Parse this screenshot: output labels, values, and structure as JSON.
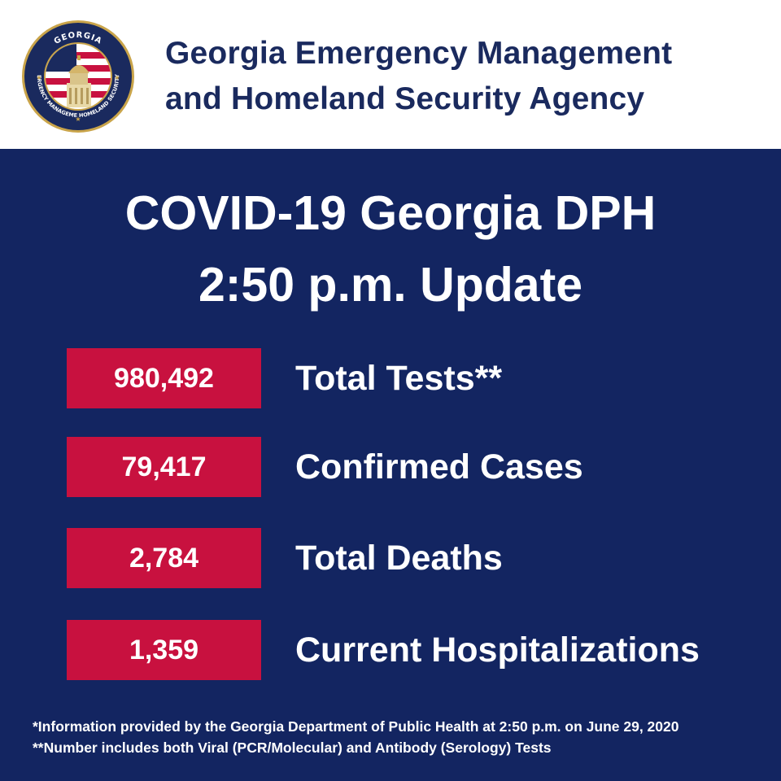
{
  "header": {
    "agency_line1": "Georgia Emergency Management",
    "agency_line2": "and Homeland Security Agency",
    "seal": {
      "top_text": "GEORGIA",
      "left_text": "EMERGENCY MANAGEMENT",
      "right_text": "HOMELAND SECURITY"
    }
  },
  "main": {
    "title_line1": "COVID-19 Georgia DPH",
    "title_line2": "2:50 p.m. Update",
    "stats": [
      {
        "value": "980,492",
        "label": "Total Tests**"
      },
      {
        "value": "79,417",
        "label": "Confirmed Cases"
      },
      {
        "value": "2,784",
        "label": "Total Deaths"
      },
      {
        "value": "1,359",
        "label": "Current Hospitalizations"
      }
    ]
  },
  "footnotes": {
    "note1": "*Information provided by the Georgia Department of Public Health at 2:50 p.m. on June 29, 2020",
    "note2": "**Number includes both Viral (PCR/Molecular) and Antibody (Serology) Tests"
  },
  "colors": {
    "navy": "#132561",
    "header_text": "#1a2a5e",
    "red": "#c8113f",
    "white": "#ffffff"
  }
}
